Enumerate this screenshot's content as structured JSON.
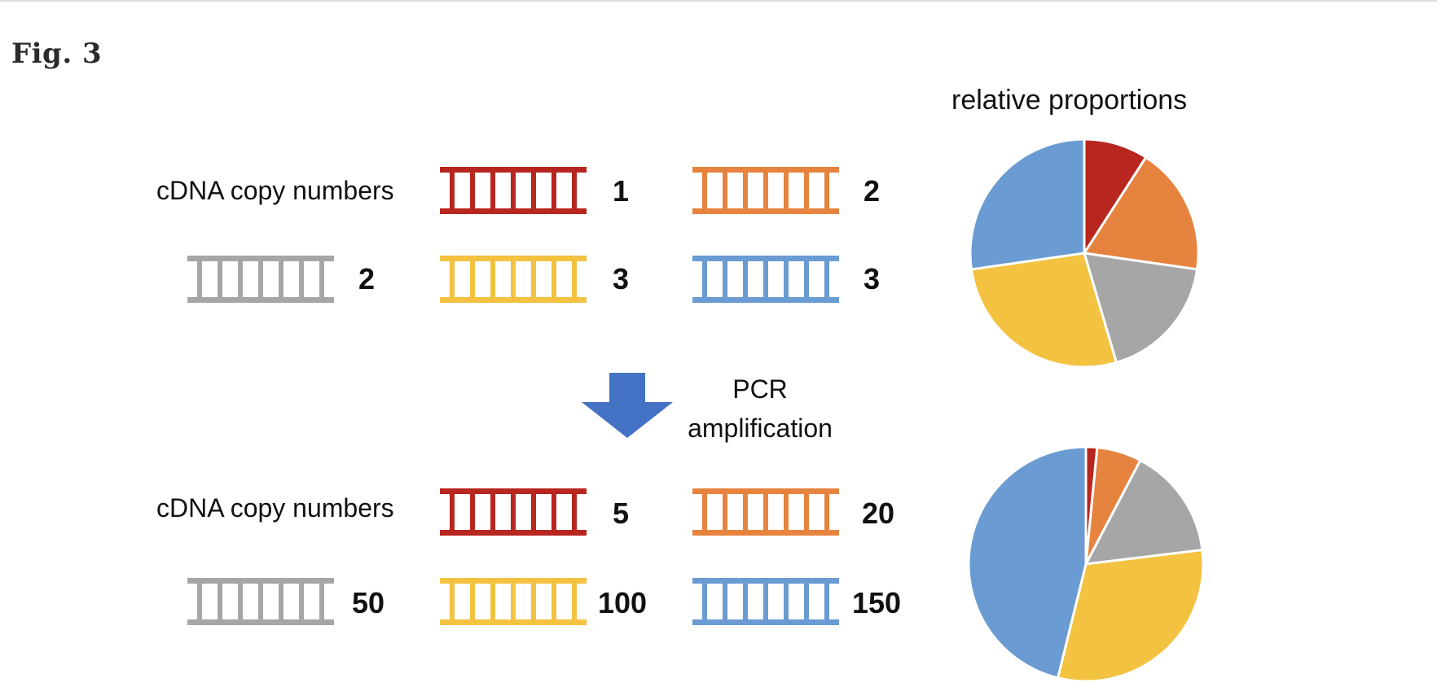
{
  "figure": {
    "label": "Fig. 3"
  },
  "colors": {
    "red": "#b7261f",
    "orange": "#e6843f",
    "gray": "#a6a6a6",
    "yellow": "#f3c240",
    "blue": "#6a9bd3",
    "arrow": "#4472c4"
  },
  "before": {
    "row_label": "cDNA copy numbers",
    "items": [
      {
        "color": "red",
        "count": "1"
      },
      {
        "color": "orange",
        "count": "2"
      },
      {
        "color": "gray",
        "count": "2"
      },
      {
        "color": "yellow",
        "count": "3"
      },
      {
        "color": "blue",
        "count": "3"
      }
    ],
    "pie_title": "relative proportions"
  },
  "step": {
    "line1": "PCR",
    "line2": "amplification"
  },
  "after": {
    "row_label": "cDNA copy numbers",
    "items": [
      {
        "color": "red",
        "count": "5"
      },
      {
        "color": "orange",
        "count": "20"
      },
      {
        "color": "gray",
        "count": "50"
      },
      {
        "color": "yellow",
        "count": "100"
      },
      {
        "color": "blue",
        "count": "150"
      }
    ]
  },
  "chart_data": [
    {
      "type": "pie",
      "title": "relative proportions",
      "categories": [
        "red",
        "orange",
        "gray",
        "yellow",
        "blue"
      ],
      "values": [
        1,
        2,
        2,
        3,
        3
      ]
    },
    {
      "type": "pie",
      "title": "",
      "categories": [
        "red",
        "orange",
        "gray",
        "yellow",
        "blue"
      ],
      "values": [
        5,
        20,
        50,
        100,
        150
      ]
    }
  ]
}
